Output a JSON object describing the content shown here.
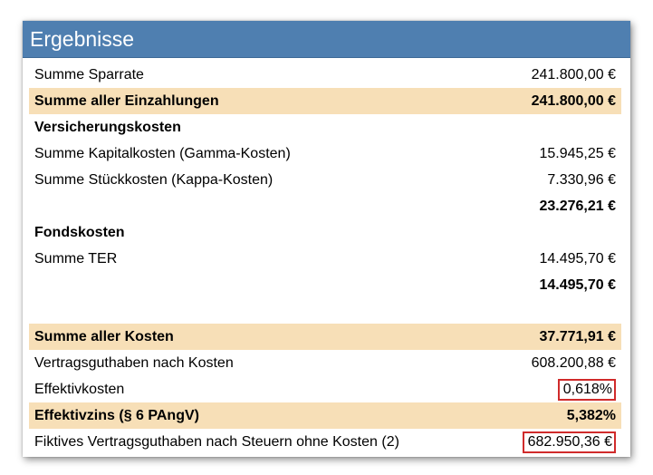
{
  "header": {
    "title": "Ergebnisse"
  },
  "rows": {
    "summe_sparrate": {
      "label": "Summe Sparrate",
      "value": "241.800,00 €"
    },
    "summe_einzahlungen": {
      "label": "Summe aller Einzahlungen",
      "value": "241.800,00 €"
    },
    "versicherungskosten": {
      "label": "Versicherungskosten"
    },
    "kapitalkosten": {
      "label": "Summe Kapitalkosten (Gamma-Kosten)",
      "value": "15.945,25 €"
    },
    "stueckkosten": {
      "label": "Summe Stückkosten (Kappa-Kosten)",
      "value": "7.330,96 €"
    },
    "versicherung_total": {
      "value": "23.276,21 €"
    },
    "fondskosten": {
      "label": "Fondskosten"
    },
    "summe_ter": {
      "label": "Summe TER",
      "value": "14.495,70 €"
    },
    "fonds_total": {
      "value": "14.495,70 €"
    },
    "summe_kosten": {
      "label": "Summe aller Kosten",
      "value": "37.771,91 €"
    },
    "vertragsguthaben": {
      "label": "Vertragsguthaben nach Kosten",
      "value": "608.200,88 €"
    },
    "effektivkosten": {
      "label": "Effektivkosten",
      "value": "0,618%"
    },
    "effektivzins": {
      "label": "Effektivzins (§ 6 PAngV)",
      "value": "5,382%"
    },
    "fiktives": {
      "label": "Fiktives Vertragsguthaben nach Steuern ohne Kosten (2)",
      "value": "682.950,36 €"
    }
  },
  "colors": {
    "header": "#4f7fb0",
    "highlight": "#f7dfb7",
    "box": "#d02b2b"
  }
}
